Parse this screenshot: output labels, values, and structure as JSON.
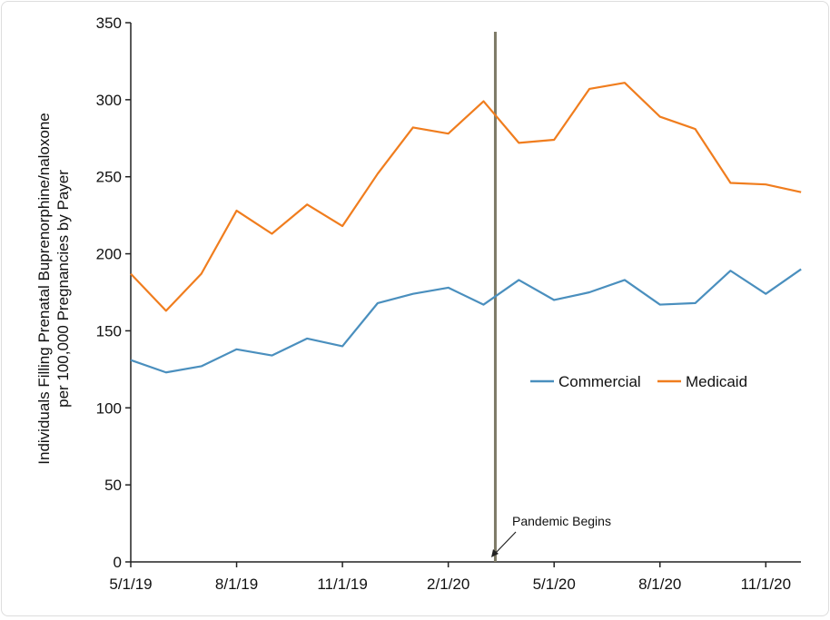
{
  "chart_data": {
    "type": "line",
    "ylabel": "Individuals Filling Prenatal Buprenorphine/naloxone per 100,000 Pregnancies by Payer",
    "ylabel_lines": [
      "Individuals Filling Prenatal Buprenorphine/naloxone",
      "per 100,000 Pregnancies by Payer"
    ],
    "xlabel": "",
    "ylim": [
      0,
      350
    ],
    "yticks": [
      "0",
      "50",
      "100",
      "150",
      "200",
      "250",
      "300",
      "350"
    ],
    "x": [
      "5/1/19",
      "6/1/19",
      "7/1/19",
      "8/1/19",
      "9/1/19",
      "10/1/19",
      "11/1/19",
      "12/1/19",
      "1/1/20",
      "2/1/20",
      "3/1/20",
      "4/1/20",
      "5/1/20",
      "6/1/20",
      "7/1/20",
      "8/1/20",
      "9/1/20",
      "10/1/20",
      "11/1/20",
      "12/1/20"
    ],
    "xtick_labels": [
      "5/1/19",
      "8/1/19",
      "11/1/19",
      "2/1/20",
      "5/1/20",
      "8/1/20",
      "11/1/20"
    ],
    "grid": false,
    "legend_position": "right-middle",
    "series": [
      {
        "name": "Commercial",
        "color": "#4a8fbe",
        "values": [
          131,
          123,
          127,
          138,
          134,
          145,
          140,
          168,
          174,
          178,
          167,
          183,
          170,
          175,
          183,
          167,
          168,
          189,
          174,
          190
        ]
      },
      {
        "name": "Medicaid",
        "color": "#f07d1e",
        "values": [
          187,
          163,
          187,
          228,
          213,
          232,
          218,
          252,
          282,
          278,
          299,
          272,
          274,
          307,
          311,
          289,
          281,
          246,
          245,
          240
        ]
      }
    ],
    "annotation": {
      "text": "Pandemic Begins",
      "date": "3/11/20",
      "line_color": "#7d7a66"
    }
  }
}
